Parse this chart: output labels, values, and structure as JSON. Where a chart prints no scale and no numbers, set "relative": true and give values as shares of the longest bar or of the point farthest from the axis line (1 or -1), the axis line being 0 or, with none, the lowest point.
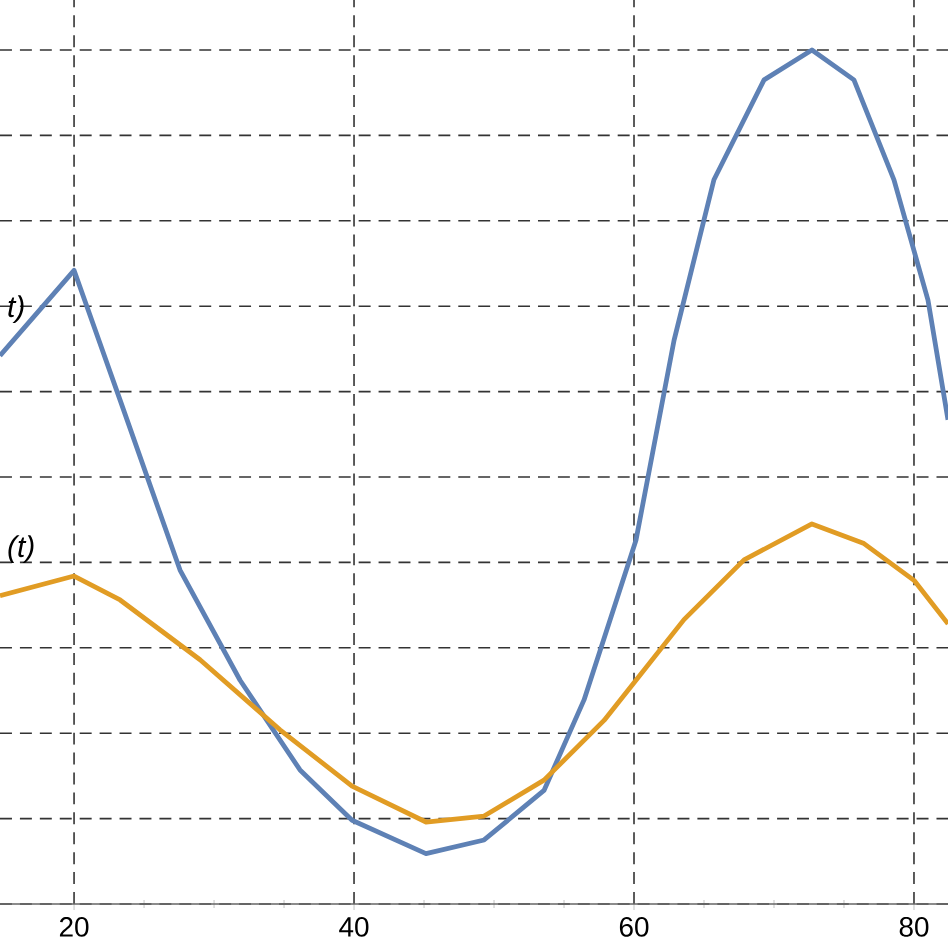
{
  "chart_data": {
    "type": "line",
    "relative": true,
    "grid": true,
    "xlim": [
      14.71,
      82.43
    ],
    "xticks": [
      20,
      40,
      60,
      80
    ],
    "series": [
      {
        "name": "t)",
        "color": "#5e81b5",
        "x": [
          14.71,
          20,
          23.29,
          27.57,
          31.86,
          36.14,
          39.86,
          45.14,
          49.29,
          53.57,
          56.43,
          60.14,
          62.86,
          65.71,
          69.29,
          72.71,
          75.71,
          78.57,
          81,
          82.43
        ],
        "values": [
          0.642,
          0.742,
          0.59,
          0.391,
          0.262,
          0.157,
          0.098,
          0.059,
          0.075,
          0.133,
          0.239,
          0.426,
          0.66,
          0.848,
          0.965,
          1.0,
          0.965,
          0.848,
          0.707,
          0.567
        ]
      },
      {
        "name": "(t)",
        "color": "#e19c24",
        "x": [
          14.71,
          20,
          23.29,
          29,
          34.71,
          39.86,
          45.14,
          49.29,
          53.57,
          57.86,
          60.14,
          63.57,
          67.86,
          72.71,
          76.43,
          80,
          82.43
        ],
        "values": [
          0.361,
          0.384,
          0.356,
          0.286,
          0.204,
          0.138,
          0.096,
          0.103,
          0.145,
          0.215,
          0.262,
          0.333,
          0.403,
          0.445,
          0.422,
          0.379,
          0.328
        ]
      }
    ]
  }
}
